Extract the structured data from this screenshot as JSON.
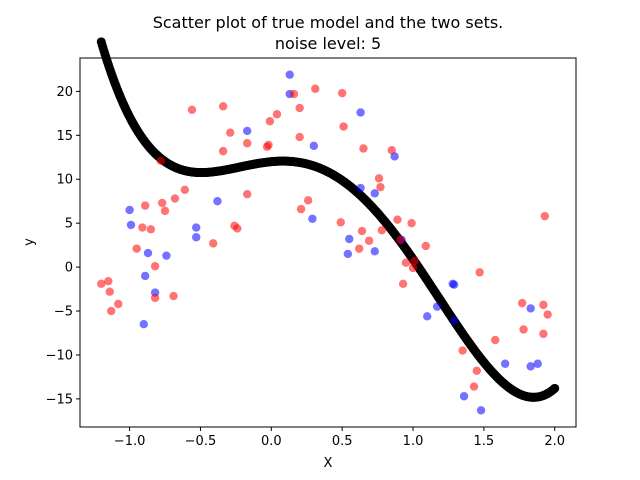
{
  "chart_data": {
    "type": "scatter",
    "title": "Scatter plot of  true model and the two sets.",
    "subtitle": "noise level: 5",
    "xlabel": "X",
    "ylabel": "y",
    "xlim": [
      -1.35,
      2.15
    ],
    "ylim": [
      -18.2,
      23.8
    ],
    "xticks": [
      -1.0,
      -0.5,
      0.0,
      0.5,
      1.0,
      1.5,
      2.0
    ],
    "xtick_labels": [
      "−1.0",
      "−0.5",
      "0.0",
      "0.5",
      "1.0",
      "1.5",
      "2.0"
    ],
    "yticks": [
      -15,
      -10,
      -5,
      0,
      5,
      10,
      15,
      20
    ],
    "ytick_labels": [
      "−15",
      "−10",
      "−5",
      "0",
      "5",
      "10",
      "15",
      "20"
    ],
    "true_model": {
      "color": "#000000",
      "x_range": [
        -1.2,
        2.0
      ],
      "polynomial_coefficients_ascending": [
        12.0,
        1.5,
        -8.0,
        -9.6,
        5.0
      ]
    },
    "series": [
      {
        "color": "#0000ff",
        "alpha": 0.55,
        "points": [
          [
            -1.0,
            6.5
          ],
          [
            -0.99,
            4.8
          ],
          [
            -0.9,
            -6.5
          ],
          [
            -0.89,
            -1.0
          ],
          [
            -0.87,
            1.6
          ],
          [
            -0.82,
            -2.9
          ],
          [
            -0.74,
            1.3
          ],
          [
            -0.53,
            4.5
          ],
          [
            -0.53,
            3.4
          ],
          [
            -0.38,
            7.5
          ],
          [
            -0.17,
            15.5
          ],
          [
            0.13,
            21.9
          ],
          [
            0.13,
            19.7
          ],
          [
            0.3,
            13.8
          ],
          [
            0.29,
            5.5
          ],
          [
            0.54,
            1.5
          ],
          [
            0.55,
            3.2
          ],
          [
            0.63,
            17.6
          ],
          [
            0.63,
            9.0
          ],
          [
            0.73,
            1.8
          ],
          [
            0.73,
            8.4
          ],
          [
            0.87,
            12.6
          ],
          [
            0.92,
            3.1
          ],
          [
            1.1,
            -5.6
          ],
          [
            1.17,
            -4.5
          ],
          [
            1.28,
            -1.9
          ],
          [
            1.29,
            -6.1
          ],
          [
            1.29,
            -2.0
          ],
          [
            1.36,
            -14.7
          ],
          [
            1.48,
            -16.3
          ],
          [
            1.65,
            -11.0
          ],
          [
            1.83,
            -4.7
          ],
          [
            1.83,
            -11.3
          ],
          [
            1.88,
            -11.0
          ]
        ]
      },
      {
        "color": "#ff0000",
        "alpha": 0.55,
        "points": [
          [
            -1.2,
            -1.9
          ],
          [
            -1.15,
            -1.6
          ],
          [
            -1.14,
            -2.8
          ],
          [
            -1.13,
            -5.0
          ],
          [
            -1.08,
            -4.2
          ],
          [
            -0.95,
            2.1
          ],
          [
            -0.91,
            4.5
          ],
          [
            -0.89,
            7.0
          ],
          [
            -0.85,
            4.3
          ],
          [
            -0.82,
            0.1
          ],
          [
            -0.82,
            -3.5
          ],
          [
            -0.78,
            12.1
          ],
          [
            -0.77,
            7.3
          ],
          [
            -0.75,
            6.4
          ],
          [
            -0.69,
            -3.3
          ],
          [
            -0.68,
            7.8
          ],
          [
            -0.61,
            8.8
          ],
          [
            -0.56,
            17.9
          ],
          [
            -0.41,
            2.7
          ],
          [
            -0.34,
            13.2
          ],
          [
            -0.34,
            18.3
          ],
          [
            -0.29,
            15.3
          ],
          [
            -0.26,
            4.7
          ],
          [
            -0.24,
            4.4
          ],
          [
            -0.17,
            14.1
          ],
          [
            -0.17,
            8.3
          ],
          [
            -0.03,
            13.7
          ],
          [
            -0.02,
            13.9
          ],
          [
            -0.01,
            16.6
          ],
          [
            0.04,
            17.4
          ],
          [
            0.16,
            19.7
          ],
          [
            0.2,
            18.1
          ],
          [
            0.2,
            14.8
          ],
          [
            0.21,
            6.6
          ],
          [
            0.26,
            7.6
          ],
          [
            0.31,
            20.3
          ],
          [
            0.5,
            19.8
          ],
          [
            0.49,
            5.1
          ],
          [
            0.51,
            16.0
          ],
          [
            0.62,
            2.1
          ],
          [
            0.64,
            4.1
          ],
          [
            0.65,
            13.5
          ],
          [
            0.69,
            3.0
          ],
          [
            0.76,
            10.1
          ],
          [
            0.77,
            9.1
          ],
          [
            0.78,
            4.2
          ],
          [
            0.85,
            13.3
          ],
          [
            0.89,
            5.4
          ],
          [
            0.91,
            3.1
          ],
          [
            0.93,
            -1.9
          ],
          [
            0.95,
            0.5
          ],
          [
            0.99,
            5.0
          ],
          [
            1.0,
            -0.1
          ],
          [
            1.01,
            0.7
          ],
          [
            1.09,
            2.4
          ],
          [
            1.35,
            -9.5
          ],
          [
            1.43,
            -13.6
          ],
          [
            1.45,
            -11.8
          ],
          [
            1.47,
            -0.6
          ],
          [
            1.58,
            -8.3
          ],
          [
            1.77,
            -4.1
          ],
          [
            1.78,
            -7.1
          ],
          [
            1.92,
            -4.3
          ],
          [
            1.92,
            -7.6
          ],
          [
            1.93,
            5.8
          ],
          [
            1.95,
            -5.4
          ]
        ]
      }
    ],
    "grid": false,
    "legend": false
  }
}
